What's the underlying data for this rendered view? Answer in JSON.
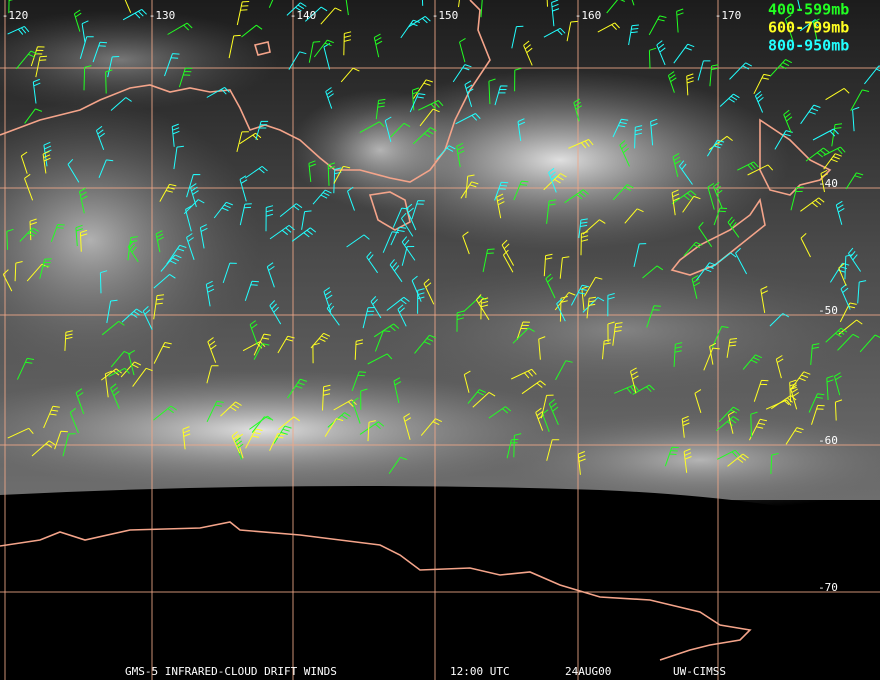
{
  "map": {
    "longitude_labels": [
      "-120",
      "-130",
      "-140",
      "-150",
      "-160",
      "-170"
    ],
    "latitude_labels": [
      "-40",
      "-50",
      "-60",
      "-70"
    ],
    "legend": [
      {
        "label": "400-599mb",
        "color": "#22ff22"
      },
      {
        "label": "600-799mb",
        "color": "#ffff22"
      },
      {
        "label": "800-950mb",
        "color": "#22ffff"
      }
    ],
    "footer": [
      "GMS-5 INFRARED-CLOUD DRIFT WINDS",
      "12:00 UTC",
      "24AUG00",
      "UW-CIMSS"
    ]
  }
}
